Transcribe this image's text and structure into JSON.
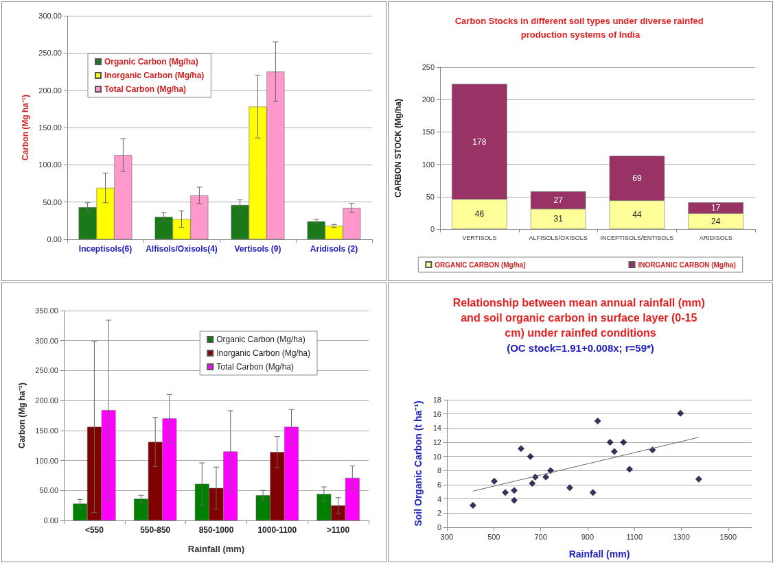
{
  "chart_data": [
    {
      "type": "bar",
      "ylabel": "Carbon (Mg ha⁻¹)",
      "categories": [
        "Inceptisols(6)",
        "Alfisols/Oxisols(4)",
        "Vertisols (9)",
        "Aridisols (2)"
      ],
      "series": [
        {
          "name": "Organic Carbon (Mg/ha)",
          "color": "#1a7a1a",
          "values": [
            43,
            30,
            46,
            24
          ],
          "errors": [
            6,
            6,
            7,
            3
          ]
        },
        {
          "name": "Inorganic Carbon (Mg/ha)",
          "color": "#ffff00",
          "values": [
            69,
            27,
            178,
            18
          ],
          "errors": [
            20,
            11,
            42,
            2
          ]
        },
        {
          "name": "Total Carbon (Mg/ha)",
          "color": "#ff99cc",
          "values": [
            113,
            59,
            225,
            42
          ],
          "errors": [
            22,
            11,
            40,
            6
          ]
        }
      ],
      "ylim": [
        0,
        300
      ],
      "yticks": [
        {
          "value": 0,
          "label": "0.00"
        },
        {
          "value": 50,
          "label": "50.00"
        },
        {
          "value": 100,
          "label": "100.00"
        },
        {
          "value": 150,
          "label": "150.00"
        },
        {
          "value": 200,
          "label": "200.00"
        },
        {
          "value": 250,
          "label": "250.00"
        },
        {
          "value": 300,
          "label": "300.00"
        }
      ],
      "grid": "y",
      "legend": "top left"
    },
    {
      "type": "bar",
      "title": "Carbon Stocks in different soil types under diverse rainfed production systems of India",
      "ylabel": "CARBON STOCK (Mg/ha)",
      "categories": [
        "VERTISOLS",
        "ALFISOLS/OXISOLS",
        "INCEPTISOLS/ENTISOLS",
        "ARIDISOLS"
      ],
      "series": [
        {
          "name": "ORGANIC CARBON (Mg/ha)",
          "color": "#ffff99",
          "values": [
            46,
            31,
            44,
            24
          ]
        },
        {
          "name": "INORGANIC CARBON (Mg/ha)",
          "color": "#993366",
          "values": [
            178,
            27,
            69,
            17
          ]
        }
      ],
      "stacked": true,
      "data_labels": true,
      "ylim": [
        0,
        250
      ],
      "yticks": [
        0,
        50,
        100,
        150,
        200,
        250
      ],
      "grid": "y",
      "legend": "bottom"
    },
    {
      "type": "bar",
      "xlabel": "Rainfall (mm)",
      "ylabel": "Carbon (Mg ha⁻¹)",
      "categories": [
        "<550",
        "550-850",
        "850-1000",
        "1000-1100",
        ">1100"
      ],
      "series": [
        {
          "name": "Organic Carbon (Mg/ha)",
          "color": "#008000",
          "values": [
            28,
            36,
            61,
            42,
            44
          ],
          "errors": [
            7,
            6,
            35,
            8,
            12
          ]
        },
        {
          "name": "Inorganic Carbon (Mg/ha)",
          "color": "#800000",
          "values": [
            156,
            131,
            54,
            114,
            25
          ],
          "errors": [
            143,
            41,
            35,
            26,
            13
          ]
        },
        {
          "name": "Total Carbon (Mg/ha)",
          "color": "#ff00ff",
          "values": [
            184,
            170,
            115,
            156,
            71
          ],
          "errors": [
            150,
            40,
            68,
            29,
            20
          ]
        }
      ],
      "ylim": [
        0,
        350
      ],
      "yticks": [
        {
          "value": 0,
          "label": "0.00"
        },
        {
          "value": 50,
          "label": "50.00"
        },
        {
          "value": 100,
          "label": "100.00"
        },
        {
          "value": 150,
          "label": "150.00"
        },
        {
          "value": 200,
          "label": "200.00"
        },
        {
          "value": 250,
          "label": "250.00"
        },
        {
          "value": 300,
          "label": "300.00"
        },
        {
          "value": 350,
          "label": "350.00"
        }
      ],
      "grid": "y",
      "legend": "top right"
    },
    {
      "type": "scatter",
      "title": "Relationship between mean annual rainfall (mm) and soil organic carbon in surface layer (0-15 cm) under rainfed conditions",
      "subtitle": "(OC stock=1.91+0.008x; r=59*)",
      "xlabel": "Rainfall (mm)",
      "ylabel": "Soil Organic Carbon (t ha⁻¹)",
      "series": [
        {
          "color": "#000033",
          "x": [
            411,
            502,
            549,
            587,
            587,
            616,
            656,
            664,
            677,
            722,
            742,
            824,
            923,
            943,
            996,
            1014,
            1053,
            1079,
            1177,
            1296,
            1374
          ],
          "values": [
            3.1,
            6.5,
            4.9,
            5.2,
            3.8,
            11.1,
            10.0,
            6.2,
            7.1,
            7.1,
            8.0,
            5.6,
            4.9,
            15.0,
            12.0,
            10.7,
            12.0,
            8.2,
            10.9,
            16.1,
            6.8
          ]
        },
        {
          "type": "line",
          "color": "#666666",
          "marker": "none",
          "x": [
            411,
            1374
          ],
          "values": [
            5.1,
            12.7
          ]
        }
      ],
      "marker": "diamond",
      "xlim": [
        300,
        1600
      ],
      "xticks": [
        300,
        500,
        700,
        900,
        1100,
        1300,
        1500
      ],
      "ylim": [
        0,
        18
      ],
      "yticks": [
        0,
        2,
        4,
        6,
        8,
        10,
        12,
        14,
        16,
        18
      ],
      "grid": "y"
    }
  ]
}
